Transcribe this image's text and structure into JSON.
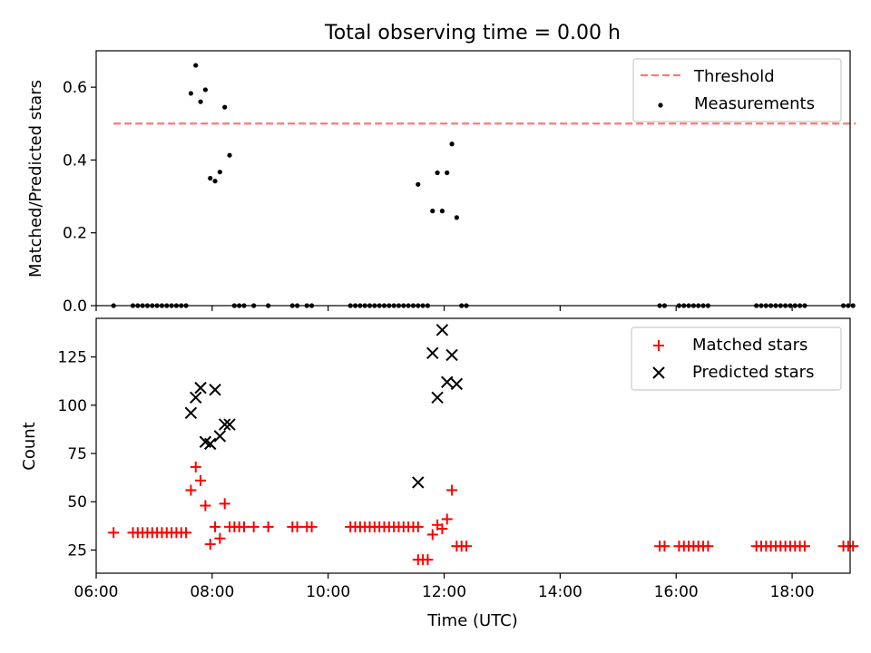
{
  "title": "Total observing time = 0.00 h",
  "chart_data": [
    {
      "type": "scatter",
      "ylabel": "Matched/Predicted stars",
      "xlim": [
        "06:00",
        "19:00"
      ],
      "ylim": [
        0,
        0.7
      ],
      "yticks": [
        0.0,
        0.2,
        0.4,
        0.6
      ],
      "threshold": {
        "name": "Threshold",
        "value": 0.5,
        "x_start": "06:18",
        "x_end": "19:06",
        "color": "#ff7777"
      },
      "series": [
        {
          "name": "Measurements",
          "color": "#000000",
          "points": [
            [
              "06:18",
              0
            ],
            [
              "06:38",
              0
            ],
            [
              "06:43",
              0
            ],
            [
              "06:48",
              0
            ],
            [
              "06:53",
              0
            ],
            [
              "06:58",
              0
            ],
            [
              "07:03",
              0
            ],
            [
              "07:08",
              0
            ],
            [
              "07:13",
              0
            ],
            [
              "07:18",
              0
            ],
            [
              "07:23",
              0
            ],
            [
              "07:28",
              0
            ],
            [
              "07:33",
              0
            ],
            [
              "07:38",
              0.583
            ],
            [
              "07:43",
              0.66
            ],
            [
              "07:48",
              0.56
            ],
            [
              "07:53",
              0.593
            ],
            [
              "07:58",
              0.35
            ],
            [
              "08:03",
              0.342
            ],
            [
              "08:08",
              0.367
            ],
            [
              "08:13",
              0.545
            ],
            [
              "08:18",
              0.413
            ],
            [
              "08:23",
              0
            ],
            [
              "08:28",
              0
            ],
            [
              "08:33",
              0
            ],
            [
              "08:43",
              0
            ],
            [
              "08:58",
              0
            ],
            [
              "09:23",
              0
            ],
            [
              "09:28",
              0
            ],
            [
              "09:38",
              0
            ],
            [
              "09:43",
              0
            ],
            [
              "10:23",
              0
            ],
            [
              "10:28",
              0
            ],
            [
              "10:33",
              0
            ],
            [
              "10:38",
              0
            ],
            [
              "10:43",
              0
            ],
            [
              "10:48",
              0
            ],
            [
              "10:53",
              0
            ],
            [
              "10:58",
              0
            ],
            [
              "11:03",
              0
            ],
            [
              "11:08",
              0
            ],
            [
              "11:13",
              0
            ],
            [
              "11:18",
              0
            ],
            [
              "11:23",
              0
            ],
            [
              "11:28",
              0
            ],
            [
              "11:33",
              0
            ],
            [
              "11:38",
              0
            ],
            [
              "11:43",
              0
            ],
            [
              "11:33",
              0.333
            ],
            [
              "11:48",
              0.26
            ],
            [
              "11:53",
              0.365
            ],
            [
              "11:58",
              0.26
            ],
            [
              "12:03",
              0.365
            ],
            [
              "12:08",
              0.444
            ],
            [
              "12:13",
              0.242
            ],
            [
              "12:18",
              0
            ],
            [
              "12:23",
              0
            ],
            [
              "15:43",
              0
            ],
            [
              "15:48",
              0
            ],
            [
              "16:03",
              0
            ],
            [
              "16:08",
              0
            ],
            [
              "16:13",
              0
            ],
            [
              "16:18",
              0
            ],
            [
              "16:23",
              0
            ],
            [
              "16:28",
              0
            ],
            [
              "16:33",
              0
            ],
            [
              "17:23",
              0
            ],
            [
              "17:28",
              0
            ],
            [
              "17:33",
              0
            ],
            [
              "17:38",
              0
            ],
            [
              "17:43",
              0
            ],
            [
              "17:48",
              0
            ],
            [
              "17:53",
              0
            ],
            [
              "17:58",
              0
            ],
            [
              "18:03",
              0
            ],
            [
              "18:08",
              0
            ],
            [
              "18:13",
              0
            ],
            [
              "18:53",
              0
            ],
            [
              "18:58",
              0
            ],
            [
              "19:03",
              0
            ]
          ]
        }
      ],
      "legend": "top-right"
    },
    {
      "type": "scatter",
      "xlabel": "Time (UTC)",
      "ylabel": "Count",
      "xlim": [
        "06:00",
        "19:00"
      ],
      "xticks": [
        "06:00",
        "08:00",
        "10:00",
        "12:00",
        "14:00",
        "16:00",
        "18:00"
      ],
      "ylim": [
        13,
        145
      ],
      "yticks": [
        25,
        50,
        75,
        100,
        125
      ],
      "series": [
        {
          "name": "Matched stars",
          "marker": "plus",
          "color": "#ff0000",
          "points": [
            [
              "06:18",
              34
            ],
            [
              "06:38",
              34
            ],
            [
              "06:43",
              34
            ],
            [
              "06:48",
              34
            ],
            [
              "06:53",
              34
            ],
            [
              "06:58",
              34
            ],
            [
              "07:03",
              34
            ],
            [
              "07:08",
              34
            ],
            [
              "07:13",
              34
            ],
            [
              "07:18",
              34
            ],
            [
              "07:23",
              34
            ],
            [
              "07:28",
              34
            ],
            [
              "07:33",
              34
            ],
            [
              "07:38",
              56
            ],
            [
              "07:43",
              68
            ],
            [
              "07:48",
              61
            ],
            [
              "07:53",
              48
            ],
            [
              "07:58",
              28
            ],
            [
              "08:03",
              37
            ],
            [
              "08:08",
              31
            ],
            [
              "08:13",
              49
            ],
            [
              "08:18",
              37
            ],
            [
              "08:23",
              37
            ],
            [
              "08:28",
              37
            ],
            [
              "08:33",
              37
            ],
            [
              "08:43",
              37
            ],
            [
              "08:58",
              37
            ],
            [
              "09:23",
              37
            ],
            [
              "09:28",
              37
            ],
            [
              "09:38",
              37
            ],
            [
              "09:43",
              37
            ],
            [
              "10:23",
              37
            ],
            [
              "10:28",
              37
            ],
            [
              "10:33",
              37
            ],
            [
              "10:38",
              37
            ],
            [
              "10:43",
              37
            ],
            [
              "10:48",
              37
            ],
            [
              "10:53",
              37
            ],
            [
              "10:58",
              37
            ],
            [
              "11:03",
              37
            ],
            [
              "11:08",
              37
            ],
            [
              "11:13",
              37
            ],
            [
              "11:18",
              37
            ],
            [
              "11:23",
              37
            ],
            [
              "11:28",
              37
            ],
            [
              "11:33",
              37
            ],
            [
              "11:33",
              20
            ],
            [
              "11:38",
              20
            ],
            [
              "11:43",
              20
            ],
            [
              "11:48",
              33
            ],
            [
              "11:53",
              38
            ],
            [
              "11:58",
              36
            ],
            [
              "12:03",
              41
            ],
            [
              "12:08",
              56
            ],
            [
              "12:13",
              27
            ],
            [
              "12:18",
              27
            ],
            [
              "12:23",
              27
            ],
            [
              "15:43",
              27
            ],
            [
              "15:48",
              27
            ],
            [
              "16:03",
              27
            ],
            [
              "16:08",
              27
            ],
            [
              "16:13",
              27
            ],
            [
              "16:18",
              27
            ],
            [
              "16:23",
              27
            ],
            [
              "16:28",
              27
            ],
            [
              "16:33",
              27
            ],
            [
              "17:23",
              27
            ],
            [
              "17:28",
              27
            ],
            [
              "17:33",
              27
            ],
            [
              "17:38",
              27
            ],
            [
              "17:43",
              27
            ],
            [
              "17:48",
              27
            ],
            [
              "17:53",
              27
            ],
            [
              "17:58",
              27
            ],
            [
              "18:03",
              27
            ],
            [
              "18:08",
              27
            ],
            [
              "18:13",
              27
            ],
            [
              "18:53",
              27
            ],
            [
              "18:58",
              27
            ],
            [
              "19:03",
              27
            ]
          ]
        },
        {
          "name": "Predicted stars",
          "marker": "x",
          "color": "#000000",
          "points": [
            [
              "07:38",
              96
            ],
            [
              "07:43",
              104
            ],
            [
              "07:48",
              109
            ],
            [
              "07:53",
              81
            ],
            [
              "07:58",
              80
            ],
            [
              "08:03",
              108
            ],
            [
              "08:08",
              84
            ],
            [
              "08:13",
              90
            ],
            [
              "08:18",
              90
            ],
            [
              "11:33",
              60
            ],
            [
              "11:48",
              127
            ],
            [
              "11:53",
              104
            ],
            [
              "11:58",
              139
            ],
            [
              "12:03",
              112
            ],
            [
              "12:08",
              126
            ],
            [
              "12:13",
              111
            ]
          ]
        }
      ],
      "legend": "top-right"
    }
  ]
}
